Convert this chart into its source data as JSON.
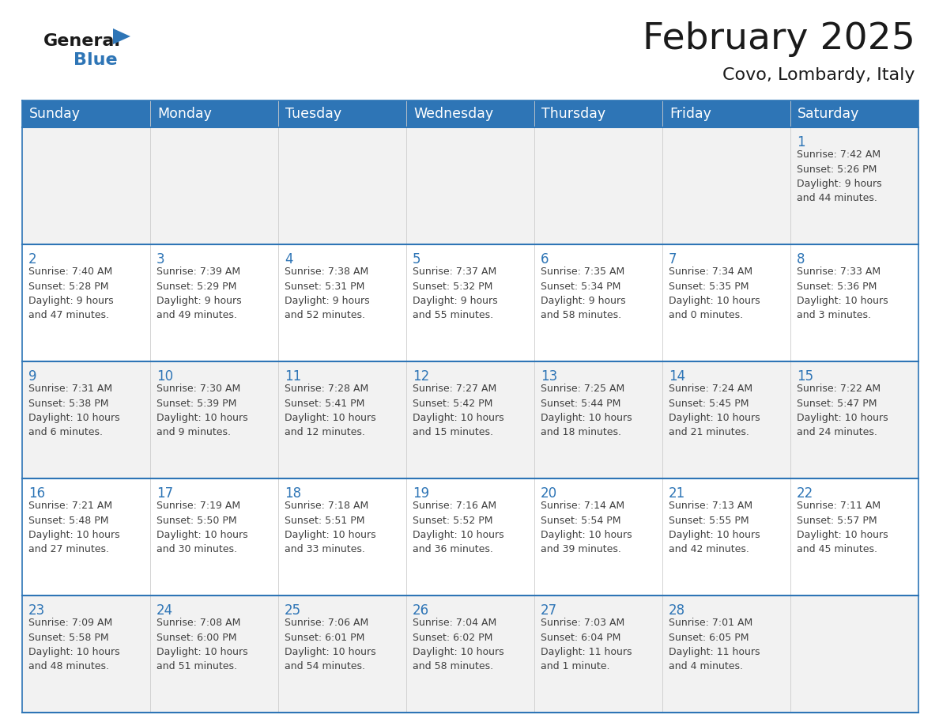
{
  "title": "February 2025",
  "subtitle": "Covo, Lombardy, Italy",
  "header_bg": "#2E75B6",
  "header_text_color": "#FFFFFF",
  "cell_bg_light": "#F2F2F2",
  "cell_bg_white": "#FFFFFF",
  "day_number_color": "#2E75B6",
  "cell_text_color": "#404040",
  "grid_line_color": "#2E75B6",
  "days_of_week": [
    "Sunday",
    "Monday",
    "Tuesday",
    "Wednesday",
    "Thursday",
    "Friday",
    "Saturday"
  ],
  "weeks": [
    [
      {
        "day": null,
        "text": ""
      },
      {
        "day": null,
        "text": ""
      },
      {
        "day": null,
        "text": ""
      },
      {
        "day": null,
        "text": ""
      },
      {
        "day": null,
        "text": ""
      },
      {
        "day": null,
        "text": ""
      },
      {
        "day": 1,
        "text": "Sunrise: 7:42 AM\nSunset: 5:26 PM\nDaylight: 9 hours\nand 44 minutes."
      }
    ],
    [
      {
        "day": 2,
        "text": "Sunrise: 7:40 AM\nSunset: 5:28 PM\nDaylight: 9 hours\nand 47 minutes."
      },
      {
        "day": 3,
        "text": "Sunrise: 7:39 AM\nSunset: 5:29 PM\nDaylight: 9 hours\nand 49 minutes."
      },
      {
        "day": 4,
        "text": "Sunrise: 7:38 AM\nSunset: 5:31 PM\nDaylight: 9 hours\nand 52 minutes."
      },
      {
        "day": 5,
        "text": "Sunrise: 7:37 AM\nSunset: 5:32 PM\nDaylight: 9 hours\nand 55 minutes."
      },
      {
        "day": 6,
        "text": "Sunrise: 7:35 AM\nSunset: 5:34 PM\nDaylight: 9 hours\nand 58 minutes."
      },
      {
        "day": 7,
        "text": "Sunrise: 7:34 AM\nSunset: 5:35 PM\nDaylight: 10 hours\nand 0 minutes."
      },
      {
        "day": 8,
        "text": "Sunrise: 7:33 AM\nSunset: 5:36 PM\nDaylight: 10 hours\nand 3 minutes."
      }
    ],
    [
      {
        "day": 9,
        "text": "Sunrise: 7:31 AM\nSunset: 5:38 PM\nDaylight: 10 hours\nand 6 minutes."
      },
      {
        "day": 10,
        "text": "Sunrise: 7:30 AM\nSunset: 5:39 PM\nDaylight: 10 hours\nand 9 minutes."
      },
      {
        "day": 11,
        "text": "Sunrise: 7:28 AM\nSunset: 5:41 PM\nDaylight: 10 hours\nand 12 minutes."
      },
      {
        "day": 12,
        "text": "Sunrise: 7:27 AM\nSunset: 5:42 PM\nDaylight: 10 hours\nand 15 minutes."
      },
      {
        "day": 13,
        "text": "Sunrise: 7:25 AM\nSunset: 5:44 PM\nDaylight: 10 hours\nand 18 minutes."
      },
      {
        "day": 14,
        "text": "Sunrise: 7:24 AM\nSunset: 5:45 PM\nDaylight: 10 hours\nand 21 minutes."
      },
      {
        "day": 15,
        "text": "Sunrise: 7:22 AM\nSunset: 5:47 PM\nDaylight: 10 hours\nand 24 minutes."
      }
    ],
    [
      {
        "day": 16,
        "text": "Sunrise: 7:21 AM\nSunset: 5:48 PM\nDaylight: 10 hours\nand 27 minutes."
      },
      {
        "day": 17,
        "text": "Sunrise: 7:19 AM\nSunset: 5:50 PM\nDaylight: 10 hours\nand 30 minutes."
      },
      {
        "day": 18,
        "text": "Sunrise: 7:18 AM\nSunset: 5:51 PM\nDaylight: 10 hours\nand 33 minutes."
      },
      {
        "day": 19,
        "text": "Sunrise: 7:16 AM\nSunset: 5:52 PM\nDaylight: 10 hours\nand 36 minutes."
      },
      {
        "day": 20,
        "text": "Sunrise: 7:14 AM\nSunset: 5:54 PM\nDaylight: 10 hours\nand 39 minutes."
      },
      {
        "day": 21,
        "text": "Sunrise: 7:13 AM\nSunset: 5:55 PM\nDaylight: 10 hours\nand 42 minutes."
      },
      {
        "day": 22,
        "text": "Sunrise: 7:11 AM\nSunset: 5:57 PM\nDaylight: 10 hours\nand 45 minutes."
      }
    ],
    [
      {
        "day": 23,
        "text": "Sunrise: 7:09 AM\nSunset: 5:58 PM\nDaylight: 10 hours\nand 48 minutes."
      },
      {
        "day": 24,
        "text": "Sunrise: 7:08 AM\nSunset: 6:00 PM\nDaylight: 10 hours\nand 51 minutes."
      },
      {
        "day": 25,
        "text": "Sunrise: 7:06 AM\nSunset: 6:01 PM\nDaylight: 10 hours\nand 54 minutes."
      },
      {
        "day": 26,
        "text": "Sunrise: 7:04 AM\nSunset: 6:02 PM\nDaylight: 10 hours\nand 58 minutes."
      },
      {
        "day": 27,
        "text": "Sunrise: 7:03 AM\nSunset: 6:04 PM\nDaylight: 11 hours\nand 1 minute."
      },
      {
        "day": 28,
        "text": "Sunrise: 7:01 AM\nSunset: 6:05 PM\nDaylight: 11 hours\nand 4 minutes."
      },
      {
        "day": null,
        "text": ""
      }
    ]
  ]
}
